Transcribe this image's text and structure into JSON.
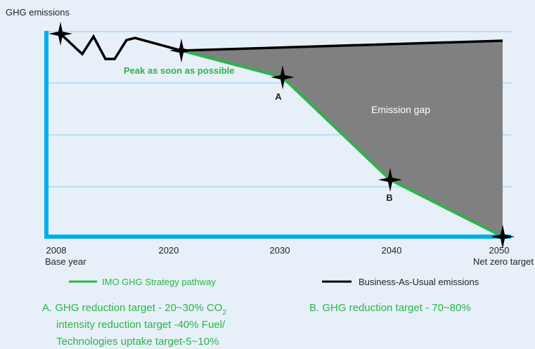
{
  "y_axis_label": "GHG emissions",
  "x_labels": [
    "2008",
    "2020",
    "2030",
    "2040",
    "2050"
  ],
  "x_sublabels": {
    "start": "Base year",
    "end": "Net zero target"
  },
  "annotations": {
    "peak": "Peak as soon as possible",
    "point_a": "A",
    "point_b": "B",
    "gap": "Emission gap"
  },
  "legend": [
    "IMO GHG Strategy pathway",
    "Business-As-Usual emissions"
  ],
  "notes": {
    "a": {
      "line1": "A. GHG reduction target - 20~30% CO",
      "sub": "2",
      "line2": "intensity reduction target -40% Fuel/",
      "line3": "Technologies uptake target-5~10%"
    },
    "b": "B. GHG reduction target - 70~80%"
  }
}
